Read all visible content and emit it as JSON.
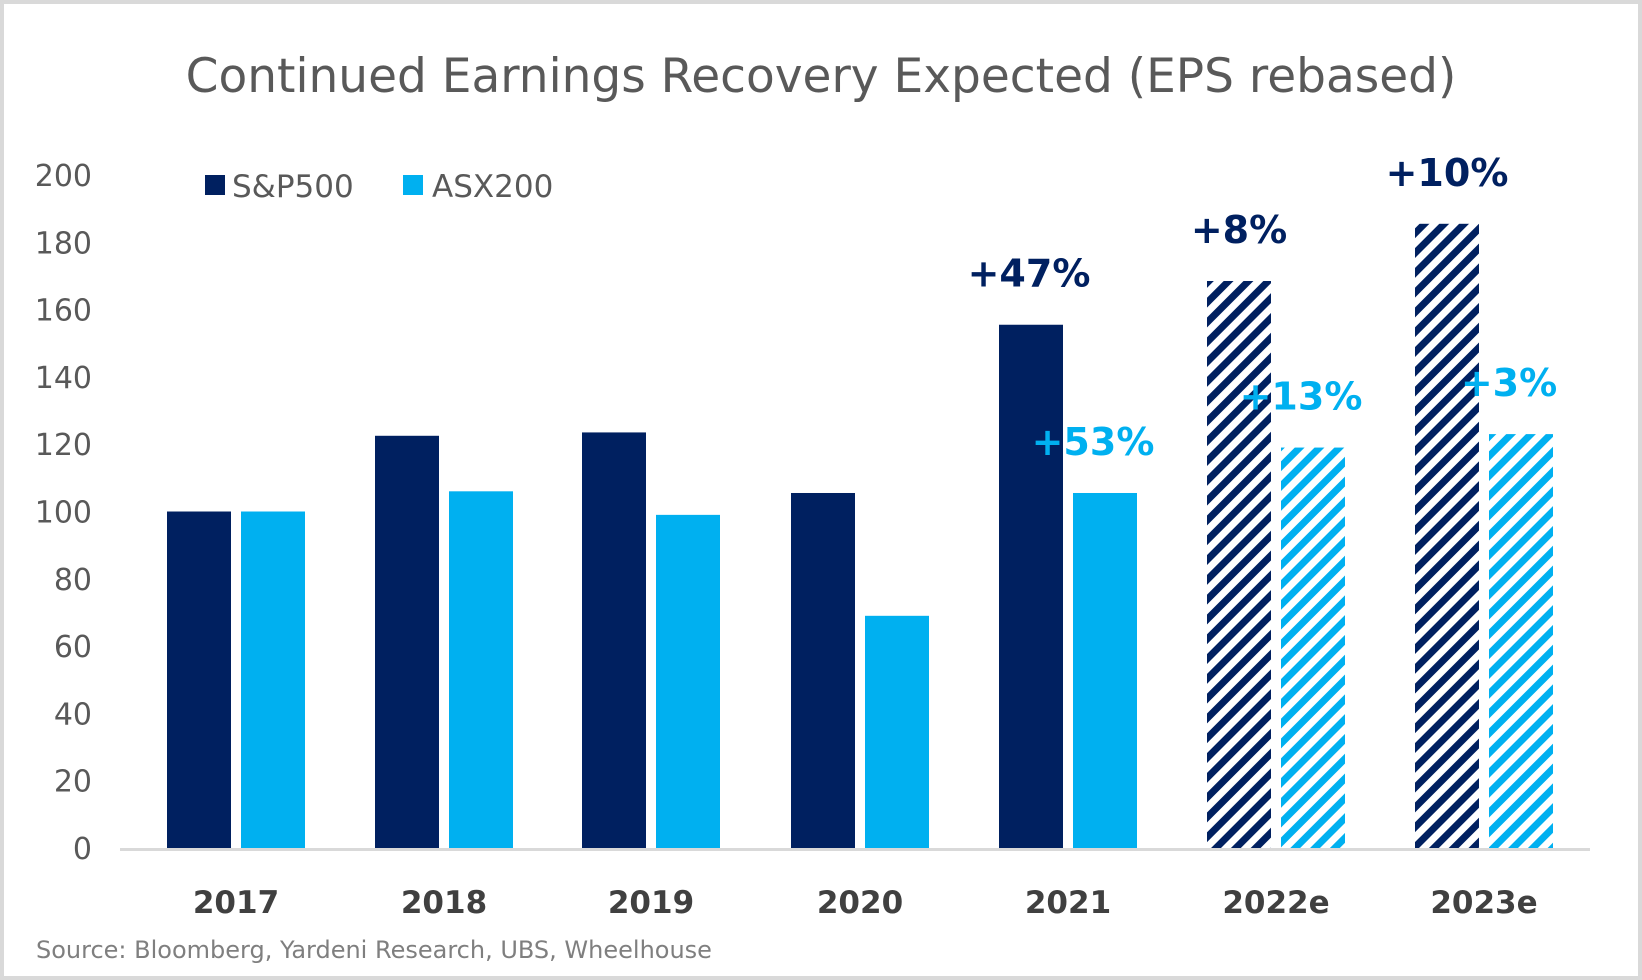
{
  "colors": {
    "sp500": "#002060",
    "asx200": "#00b0f0",
    "axis": "#d9d9d9",
    "text": "#595959"
  },
  "chart_data": {
    "type": "bar",
    "title": "Continued Earnings Recovery Expected (EPS rebased)",
    "xlabel": "",
    "ylabel": "",
    "ylim": [
      0,
      200
    ],
    "yticks": [
      0,
      20,
      40,
      60,
      80,
      100,
      120,
      140,
      160,
      180,
      200
    ],
    "grid": false,
    "legend_position": "top-left",
    "categories": [
      "2017",
      "2018",
      "2019",
      "2020",
      "2021",
      "2022e",
      "2023e"
    ],
    "estimated_categories": [
      "2022e",
      "2023e"
    ],
    "series": [
      {
        "name": "S&P500",
        "values": [
          100,
          122.5,
          123.5,
          105.5,
          155.5,
          168.5,
          185.5
        ]
      },
      {
        "name": "ASX200",
        "values": [
          100,
          106,
          99,
          69,
          105.5,
          119,
          123
        ]
      }
    ],
    "annotations": [
      {
        "series": "S&P500",
        "category": "2021",
        "text": "+47%"
      },
      {
        "series": "S&P500",
        "category": "2022e",
        "text": "+8%"
      },
      {
        "series": "S&P500",
        "category": "2023e",
        "text": "+10%"
      },
      {
        "series": "ASX200",
        "category": "2021",
        "text": "+53%"
      },
      {
        "series": "ASX200",
        "category": "2022e",
        "text": "+13%"
      },
      {
        "series": "ASX200",
        "category": "2023e",
        "text": "+3%"
      }
    ],
    "source": "Source: Bloomberg, Yardeni Research, UBS, Wheelhouse"
  }
}
